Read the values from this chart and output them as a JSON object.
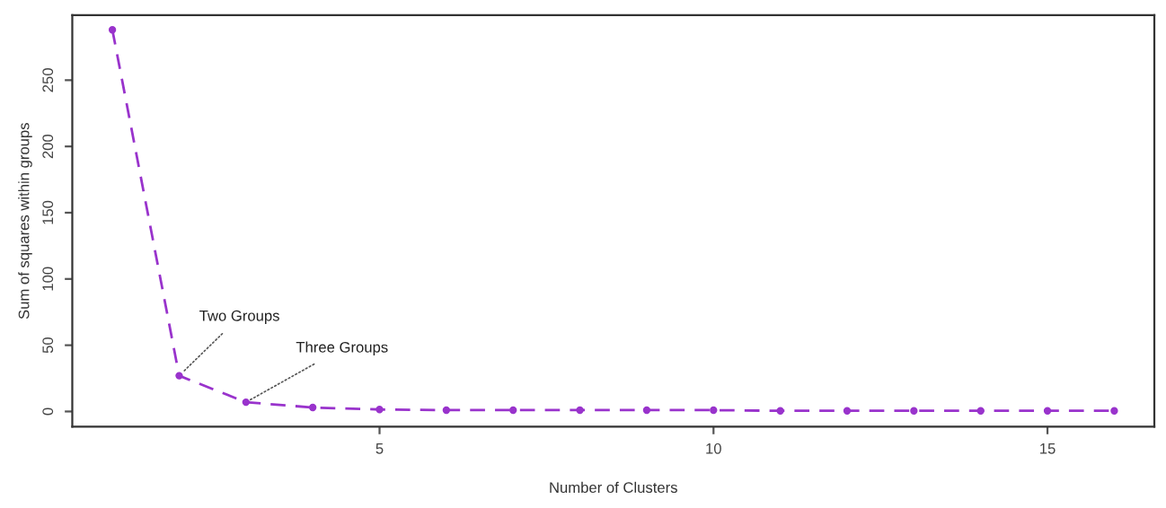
{
  "chart_data": {
    "type": "line",
    "xlabel": "Number of Clusters",
    "ylabel": "Sum of squares within groups",
    "x": [
      1,
      2,
      3,
      4,
      5,
      6,
      7,
      8,
      9,
      10,
      11,
      12,
      13,
      14,
      15,
      16
    ],
    "series": [
      {
        "color": "#9933cc",
        "values": [
          288,
          27,
          7,
          3,
          1.5,
          1,
          1,
          1,
          1,
          1,
          0.5,
          0.5,
          0.5,
          0.5,
          0.5,
          0.5
        ]
      }
    ],
    "marker": "circle",
    "line_style": "dashed",
    "xlim": [
      0.4,
      16.6
    ],
    "ylim": [
      -11.5,
      299
    ],
    "xticks": [
      5,
      10,
      15
    ],
    "yticks": [
      0,
      50,
      100,
      150,
      200,
      250
    ],
    "grid": false,
    "legend": false,
    "annotations": [
      {
        "text": "Two Groups",
        "x": 2,
        "y": 27
      },
      {
        "text": "Three Groups",
        "x": 3,
        "y": 7
      }
    ]
  }
}
